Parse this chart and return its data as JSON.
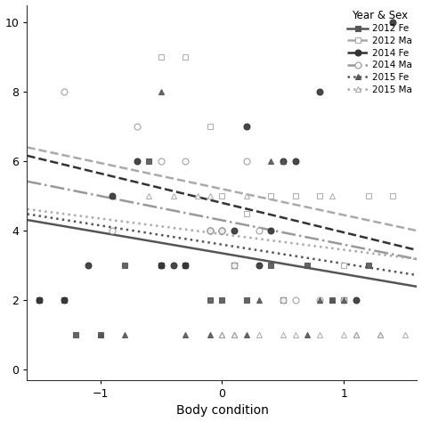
{
  "title": "",
  "xlabel": "Body condition",
  "ylabel": "",
  "xlim": [
    -1.6,
    1.6
  ],
  "ylim": [
    -0.3,
    10.5
  ],
  "yticks": [
    0,
    2,
    4,
    6,
    8,
    10
  ],
  "xticks": [
    -1,
    0,
    1
  ],
  "background_color": "#ffffff",
  "series": [
    {
      "label": "2012 Fe",
      "color": "#555555",
      "marker": "s",
      "linestyle": "-",
      "linewidth": 1.8,
      "markersize": 5,
      "filled": true,
      "slope": -0.6,
      "intercept": 3.35,
      "points_x": [
        -1.5,
        -1.3,
        -1.2,
        -1.0,
        -0.8,
        -0.6,
        -0.5,
        -0.3,
        -0.1,
        0.0,
        0.1,
        0.2,
        0.4,
        0.5,
        0.7,
        0.9,
        1.0,
        1.2
      ],
      "points_y": [
        2.0,
        2.0,
        1.0,
        1.0,
        3.0,
        6.0,
        3.0,
        3.0,
        2.0,
        2.0,
        3.0,
        2.0,
        3.0,
        2.0,
        3.0,
        2.0,
        2.0,
        3.0
      ]
    },
    {
      "label": "2012 Ma",
      "color": "#aaaaaa",
      "marker": "s",
      "linestyle": "--",
      "linewidth": 1.8,
      "markersize": 5,
      "filled": false,
      "slope": -0.75,
      "intercept": 5.2,
      "points_x": [
        -0.5,
        -0.3,
        -0.1,
        0.0,
        0.2,
        0.4,
        0.6,
        0.8,
        1.0,
        1.2,
        1.4
      ],
      "points_y": [
        9.0,
        9.0,
        7.0,
        5.0,
        4.5,
        5.0,
        5.0,
        5.0,
        3.0,
        5.0,
        5.0
      ]
    },
    {
      "label": "2014 Fe",
      "color": "#333333",
      "marker": "o",
      "linestyle": "--",
      "linewidth": 1.8,
      "markersize": 5,
      "filled": true,
      "slope": -0.85,
      "intercept": 4.8,
      "points_x": [
        -1.5,
        -1.3,
        -1.1,
        -0.9,
        -0.7,
        -0.5,
        -0.4,
        -0.3,
        -0.1,
        0.0,
        0.1,
        0.2,
        0.3,
        0.4,
        0.5,
        0.6,
        0.8,
        1.1,
        1.4
      ],
      "points_y": [
        2.0,
        2.0,
        3.0,
        5.0,
        6.0,
        3.0,
        3.0,
        3.0,
        4.0,
        4.0,
        4.0,
        7.0,
        3.0,
        4.0,
        6.0,
        6.0,
        8.0,
        2.0,
        10.0
      ]
    },
    {
      "label": "2014 Ma",
      "color": "#999999",
      "marker": "o",
      "linestyle": "-.",
      "linewidth": 1.8,
      "markersize": 5,
      "filled": false,
      "slope": -0.7,
      "intercept": 4.3,
      "points_x": [
        -1.3,
        -0.9,
        -0.7,
        -0.5,
        -0.3,
        -0.1,
        0.0,
        0.1,
        0.2,
        0.3,
        0.5,
        0.6,
        0.8,
        1.0
      ],
      "points_y": [
        8.0,
        4.0,
        7.0,
        6.0,
        6.0,
        4.0,
        4.0,
        3.0,
        6.0,
        4.0,
        2.0,
        2.0,
        2.0,
        2.0
      ]
    },
    {
      "label": "2015 Fe",
      "color": "#555555",
      "marker": "^",
      "linestyle": ":",
      "linewidth": 1.8,
      "markersize": 5,
      "filled": true,
      "slope": -0.55,
      "intercept": 3.6,
      "points_x": [
        -1.0,
        -0.8,
        -0.5,
        -0.3,
        -0.1,
        0.0,
        0.1,
        0.2,
        0.3,
        0.4,
        0.5,
        0.7,
        0.8,
        0.9,
        1.0,
        1.1,
        1.3
      ],
      "points_y": [
        1.0,
        1.0,
        8.0,
        1.0,
        1.0,
        1.0,
        1.0,
        1.0,
        2.0,
        6.0,
        6.0,
        1.0,
        2.0,
        2.0,
        2.0,
        1.0,
        1.0
      ]
    },
    {
      "label": "2015 Ma",
      "color": "#aaaaaa",
      "marker": "^",
      "linestyle": ":",
      "linewidth": 1.8,
      "markersize": 5,
      "filled": false,
      "slope": -0.45,
      "intercept": 3.9,
      "points_x": [
        -0.6,
        -0.4,
        -0.2,
        -0.1,
        0.0,
        0.1,
        0.2,
        0.3,
        0.5,
        0.6,
        0.8,
        0.9,
        1.0,
        1.1,
        1.3,
        1.5
      ],
      "points_y": [
        5.0,
        5.0,
        5.0,
        5.0,
        1.0,
        1.0,
        5.0,
        1.0,
        1.0,
        1.0,
        1.0,
        5.0,
        1.0,
        1.0,
        1.0,
        1.0
      ]
    }
  ]
}
